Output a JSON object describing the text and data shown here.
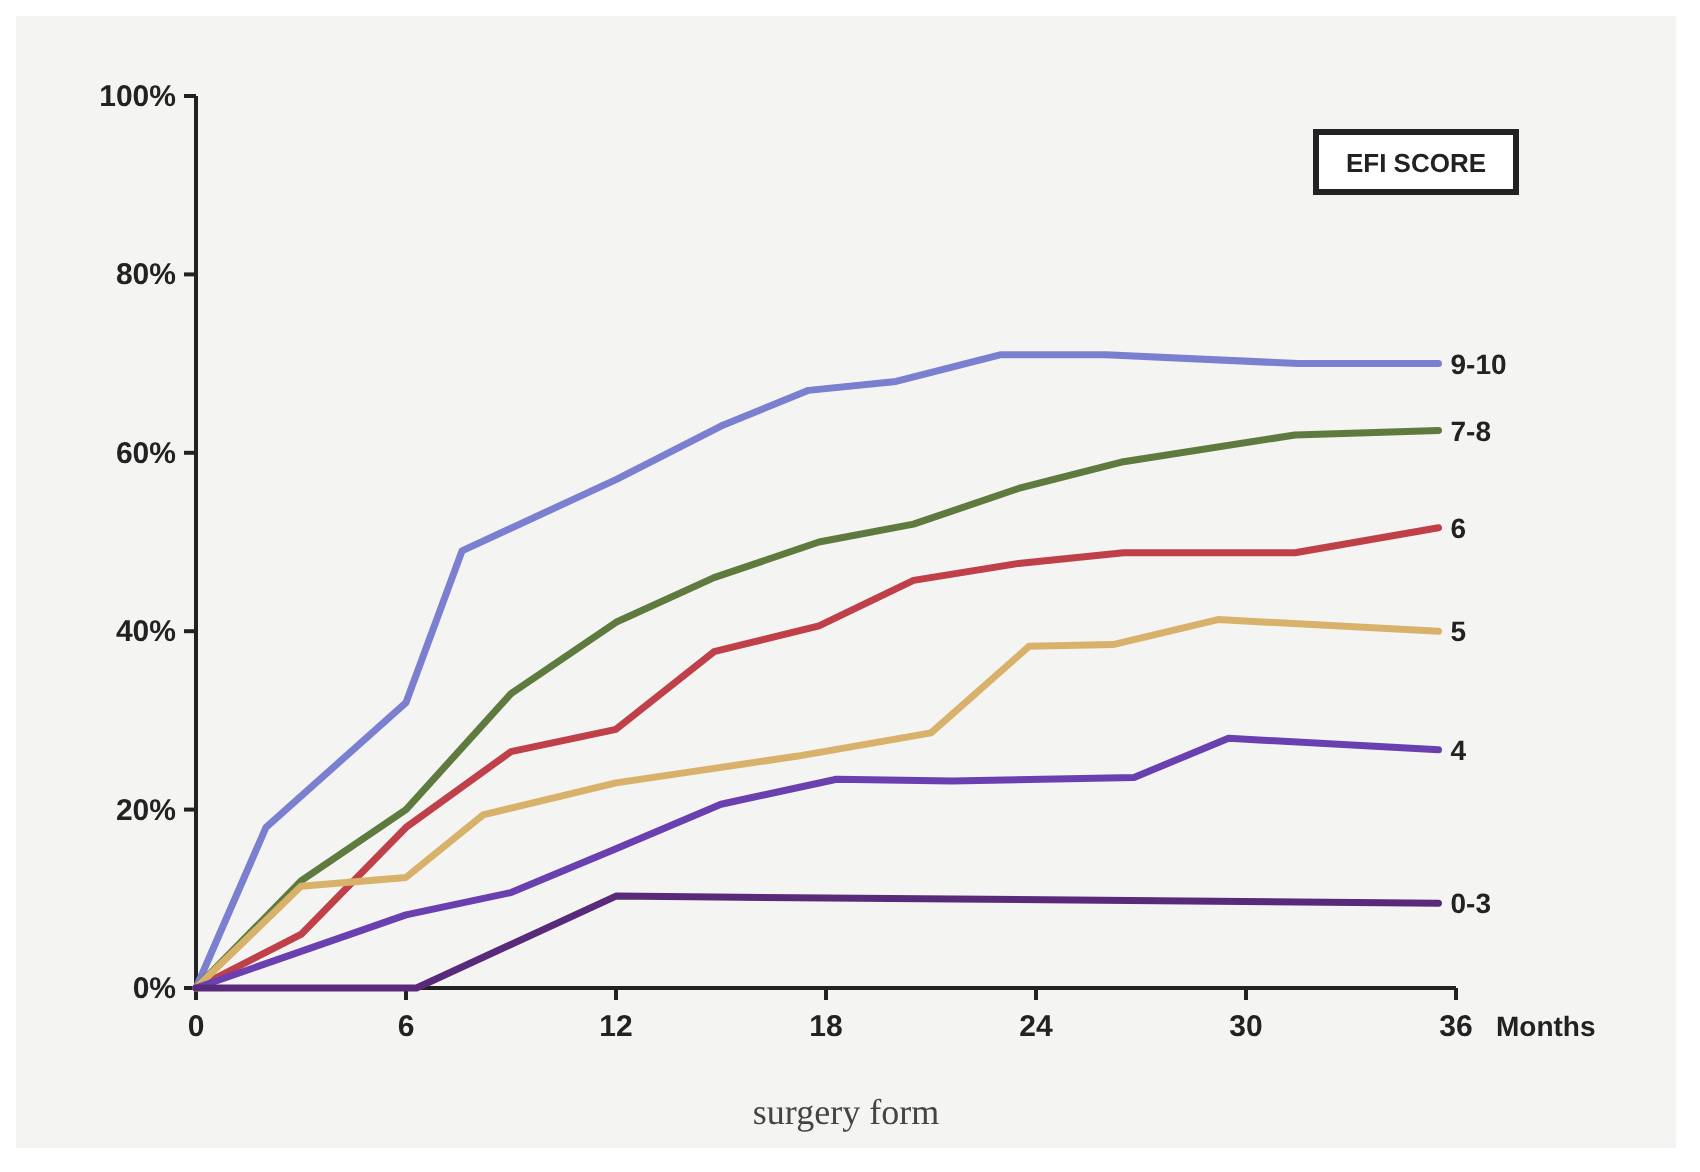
{
  "chart_data": {
    "type": "line",
    "legend_title": "EFI SCORE",
    "xlabel": "Months",
    "xlim": [
      0,
      36
    ],
    "xticks": [
      0,
      6,
      12,
      18,
      24,
      30,
      36
    ],
    "ylim": [
      0,
      100
    ],
    "yticks": [
      {
        "value": 0,
        "label": "0%"
      },
      {
        "value": 20,
        "label": "20%"
      },
      {
        "value": 40,
        "label": "40%"
      },
      {
        "value": 60,
        "label": "60%"
      },
      {
        "value": 80,
        "label": "80%"
      },
      {
        "value": 100,
        "label": "100%"
      }
    ],
    "grid": false,
    "marker": "none",
    "line_style": "solid",
    "annotations": [
      "surgery form"
    ],
    "series": [
      {
        "name": "9-10",
        "color": "#7b7fd0",
        "x": [
          0,
          2,
          6,
          7.6,
          12,
          15,
          17.5,
          20,
          23,
          26,
          31.5,
          35.5
        ],
        "values": [
          0,
          18,
          32,
          49,
          57,
          63,
          67,
          68,
          71,
          71,
          70,
          70
        ]
      },
      {
        "name": "7-8",
        "color": "#5f7a3e",
        "x": [
          0,
          3,
          6,
          9,
          12,
          14.8,
          17.8,
          20.5,
          23.5,
          26.5,
          31.4,
          35.5
        ],
        "values": [
          0,
          12,
          20,
          33,
          41,
          46,
          50,
          52,
          56,
          59,
          62,
          62.5
        ]
      },
      {
        "name": "6",
        "color": "#c0404a",
        "x": [
          0,
          3,
          6,
          9,
          12,
          14.8,
          17.8,
          20.5,
          23.5,
          26.5,
          31.4,
          35.5
        ],
        "values": [
          0,
          6,
          18,
          26.5,
          29,
          37.7,
          40.6,
          45.7,
          47.6,
          48.8,
          48.8,
          51.6
        ]
      },
      {
        "name": "5",
        "color": "#d8b26a",
        "x": [
          0,
          3,
          6,
          8.2,
          12,
          17.2,
          21,
          23.8,
          26.2,
          29.2,
          35.5
        ],
        "values": [
          0,
          11.4,
          12.4,
          19.4,
          23,
          26,
          28.6,
          38.3,
          38.5,
          41.3,
          40
        ]
      },
      {
        "name": "4",
        "color": "#6a3fb0",
        "x": [
          0,
          6,
          9,
          12,
          15,
          18.3,
          21.6,
          26.8,
          29.5,
          35.5
        ],
        "values": [
          0,
          8.2,
          10.7,
          15.6,
          20.6,
          23.4,
          23.2,
          23.6,
          28,
          26.7
        ]
      },
      {
        "name": "0-3",
        "color": "#5a2a7a",
        "x": [
          0,
          6.3,
          12,
          35.5
        ],
        "values": [
          0,
          0,
          10.3,
          9.5
        ]
      }
    ]
  }
}
